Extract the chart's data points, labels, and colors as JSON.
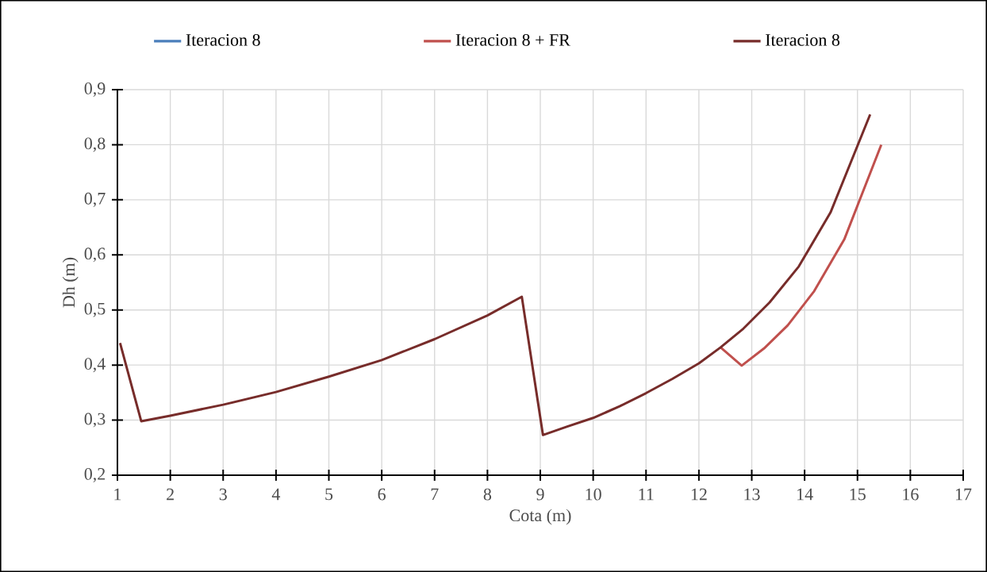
{
  "chart_data": {
    "type": "line",
    "xlabel": "Cota (m)",
    "ylabel": "Dh (m)",
    "xlim": [
      1,
      17
    ],
    "ylim": [
      0.2,
      0.9
    ],
    "xticks": [
      1,
      2,
      3,
      4,
      5,
      6,
      7,
      8,
      9,
      10,
      11,
      12,
      13,
      14,
      15,
      16,
      17
    ],
    "yticks": [
      {
        "value": 0.2,
        "label": "0,2"
      },
      {
        "value": 0.3,
        "label": "0,3"
      },
      {
        "value": 0.4,
        "label": "0,4"
      },
      {
        "value": 0.5,
        "label": "0,5"
      },
      {
        "value": 0.6,
        "label": "0,6"
      },
      {
        "value": 0.7,
        "label": "0,7"
      },
      {
        "value": 0.8,
        "label": "0,8"
      },
      {
        "value": 0.9,
        "label": "0,9"
      }
    ],
    "grid": true,
    "legend": "top",
    "marker": "none",
    "line_style": "solid",
    "series": [
      {
        "name": "Iteracion 8",
        "color": "#4a7ebb"
      },
      {
        "name": "Iteracion 8 + FR",
        "color": "#c0504d",
        "x": [
          12.41,
          12.81,
          13.23,
          13.68,
          14.18,
          14.75,
          15.45
        ],
        "values": [
          0.432,
          0.399,
          0.43,
          0.472,
          0.534,
          0.628,
          0.8
        ]
      },
      {
        "name": "Iteracion 8",
        "color": "#772c2a",
        "x": [
          1.05,
          1.45,
          2,
          3,
          4,
          5,
          6,
          7,
          8,
          8.65,
          9.05,
          9.5,
          10,
          10.5,
          11,
          11.5,
          12,
          12.41,
          12.84,
          13.34,
          13.89,
          14.49,
          15.24
        ],
        "values": [
          0.44,
          0.298,
          0.308,
          0.328,
          0.351,
          0.379,
          0.409,
          0.447,
          0.49,
          0.524,
          0.273,
          0.288,
          0.304,
          0.325,
          0.349,
          0.375,
          0.403,
          0.432,
          0.466,
          0.514,
          0.579,
          0.677,
          0.855
        ]
      }
    ]
  }
}
